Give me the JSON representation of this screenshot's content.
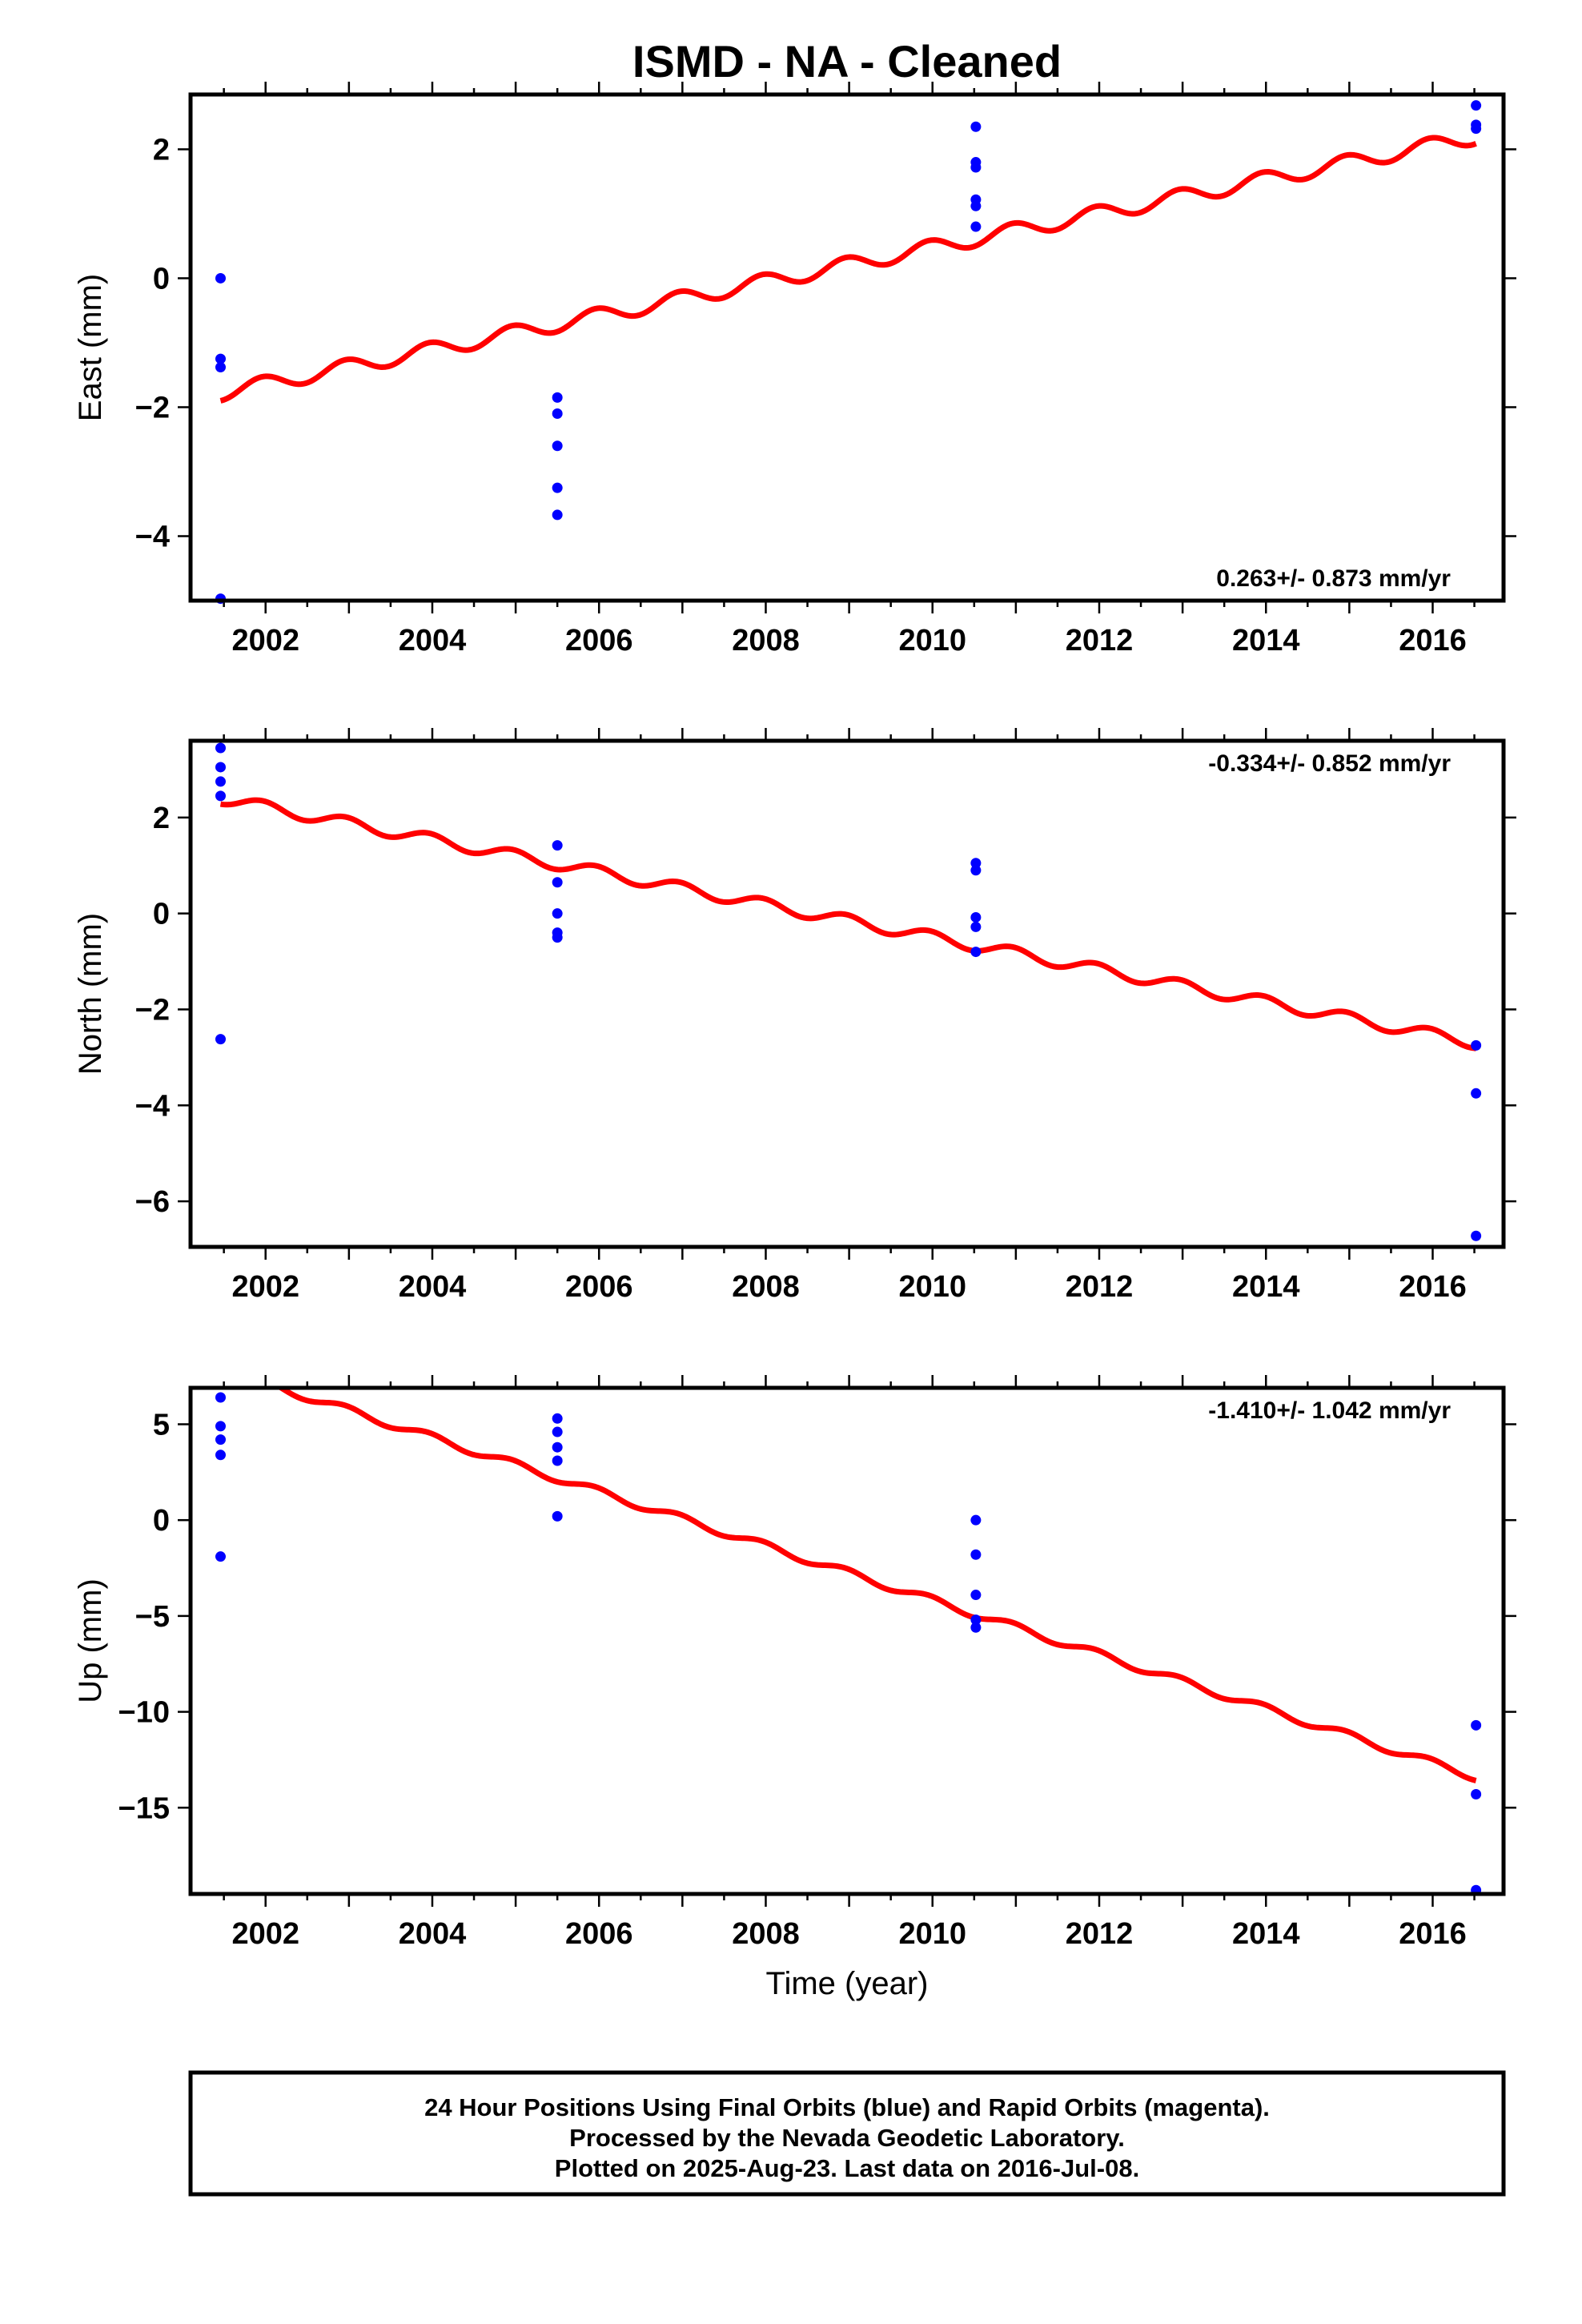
{
  "title": "ISMD  - NA - Cleaned",
  "xlabel": "Time (year)",
  "footer": {
    "line1": "24 Hour Positions Using Final Orbits (blue) and Rapid Orbits (magenta).",
    "line2": "Processed by the Nevada Geodetic Laboratory.",
    "line3": "Plotted on 2025-Aug-23. Last data on 2016-Jul-08."
  },
  "colors": {
    "points": "#0000ff",
    "fit": "#ff0000",
    "frame": "#000000"
  },
  "chart_data": [
    {
      "type": "scatter",
      "ylabel": "East (mm)",
      "rate_label": "0.263+/- 0.873 mm/yr",
      "rate_position": "bottom-right",
      "xlim": [
        2001.1,
        2016.85
      ],
      "ylim": [
        -5.0,
        2.85
      ],
      "xticks": [
        "2002",
        "2004",
        "2006",
        "2008",
        "2010",
        "2012",
        "2014",
        "2016"
      ],
      "yticks": [
        "−4",
        "−2",
        "0",
        "2"
      ],
      "ytick_values": [
        -4,
        -2,
        0,
        2
      ],
      "points": [
        {
          "x": 2001.46,
          "y": 0.0
        },
        {
          "x": 2001.46,
          "y": -1.25
        },
        {
          "x": 2001.46,
          "y": -1.38
        },
        {
          "x": 2001.46,
          "y": -4.97
        },
        {
          "x": 2005.5,
          "y": -1.85
        },
        {
          "x": 2005.5,
          "y": -2.1
        },
        {
          "x": 2005.5,
          "y": -2.6
        },
        {
          "x": 2005.5,
          "y": -3.25
        },
        {
          "x": 2005.5,
          "y": -3.67
        },
        {
          "x": 2010.52,
          "y": 2.35
        },
        {
          "x": 2010.52,
          "y": 1.8
        },
        {
          "x": 2010.52,
          "y": 1.72
        },
        {
          "x": 2010.52,
          "y": 1.22
        },
        {
          "x": 2010.52,
          "y": 1.12
        },
        {
          "x": 2010.52,
          "y": 0.8
        },
        {
          "x": 2016.52,
          "y": 2.68
        },
        {
          "x": 2016.52,
          "y": 2.38
        },
        {
          "x": 2016.52,
          "y": 2.32
        }
      ],
      "fit": {
        "x_start": 2001.46,
        "x_end": 2016.52,
        "y_start": -1.78,
        "y_end": 2.2,
        "amplitude": 0.12
      }
    },
    {
      "type": "scatter",
      "ylabel": "North (mm)",
      "rate_label": "-0.334+/- 0.852 mm/yr",
      "rate_position": "top-right",
      "xlim": [
        2001.1,
        2016.85
      ],
      "ylim": [
        -6.95,
        3.6
      ],
      "xticks": [
        "2002",
        "2004",
        "2006",
        "2008",
        "2010",
        "2012",
        "2014",
        "2016"
      ],
      "yticks": [
        "−6",
        "−4",
        "−2",
        "0",
        "2"
      ],
      "ytick_values": [
        -6,
        -4,
        -2,
        0,
        2
      ],
      "points": [
        {
          "x": 2001.46,
          "y": 3.45
        },
        {
          "x": 2001.46,
          "y": 3.05
        },
        {
          "x": 2001.46,
          "y": 2.75
        },
        {
          "x": 2001.46,
          "y": 2.45
        },
        {
          "x": 2001.46,
          "y": -2.62
        },
        {
          "x": 2005.5,
          "y": 1.42
        },
        {
          "x": 2005.5,
          "y": 0.65
        },
        {
          "x": 2005.5,
          "y": 0.0
        },
        {
          "x": 2005.5,
          "y": -0.4
        },
        {
          "x": 2005.5,
          "y": -0.5
        },
        {
          "x": 2010.52,
          "y": 1.05
        },
        {
          "x": 2010.52,
          "y": 0.9
        },
        {
          "x": 2010.52,
          "y": -0.08
        },
        {
          "x": 2010.52,
          "y": -0.28
        },
        {
          "x": 2010.52,
          "y": -0.8
        },
        {
          "x": 2016.52,
          "y": -2.75
        },
        {
          "x": 2016.52,
          "y": -3.75
        },
        {
          "x": 2016.52,
          "y": -6.72
        }
      ],
      "fit": {
        "x_start": 2001.46,
        "x_end": 2016.52,
        "y_start": 2.4,
        "y_end": -2.7,
        "amplitude": 0.12
      }
    },
    {
      "type": "scatter",
      "ylabel": "Up (mm)",
      "rate_label": "-1.410+/- 1.042 mm/yr",
      "rate_position": "top-right",
      "xlim": [
        2001.1,
        2016.85
      ],
      "ylim": [
        -19.5,
        6.9
      ],
      "xticks": [
        "2002",
        "2004",
        "2006",
        "2008",
        "2010",
        "2012",
        "2014",
        "2016"
      ],
      "yticks": [
        "−15",
        "−10",
        "−5",
        "0",
        "5"
      ],
      "ytick_values": [
        -15,
        -10,
        -5,
        0,
        5
      ],
      "points": [
        {
          "x": 2001.46,
          "y": 6.4
        },
        {
          "x": 2001.46,
          "y": 4.9
        },
        {
          "x": 2001.46,
          "y": 4.2
        },
        {
          "x": 2001.46,
          "y": 3.4
        },
        {
          "x": 2001.46,
          "y": -1.9
        },
        {
          "x": 2005.5,
          "y": 5.3
        },
        {
          "x": 2005.5,
          "y": 4.6
        },
        {
          "x": 2005.5,
          "y": 3.8
        },
        {
          "x": 2005.5,
          "y": 3.1
        },
        {
          "x": 2005.5,
          "y": 0.2
        },
        {
          "x": 2010.52,
          "y": 0.0
        },
        {
          "x": 2010.52,
          "y": -1.8
        },
        {
          "x": 2010.52,
          "y": -3.9
        },
        {
          "x": 2010.52,
          "y": -5.2
        },
        {
          "x": 2010.52,
          "y": -5.6
        },
        {
          "x": 2016.52,
          "y": -10.7
        },
        {
          "x": 2016.52,
          "y": -14.3
        },
        {
          "x": 2016.52,
          "y": -19.3
        }
      ],
      "fit": {
        "x_start": 2001.46,
        "x_end": 2016.52,
        "y_start": 7.9,
        "y_end": -13.4,
        "amplitude": 0.2
      }
    }
  ]
}
